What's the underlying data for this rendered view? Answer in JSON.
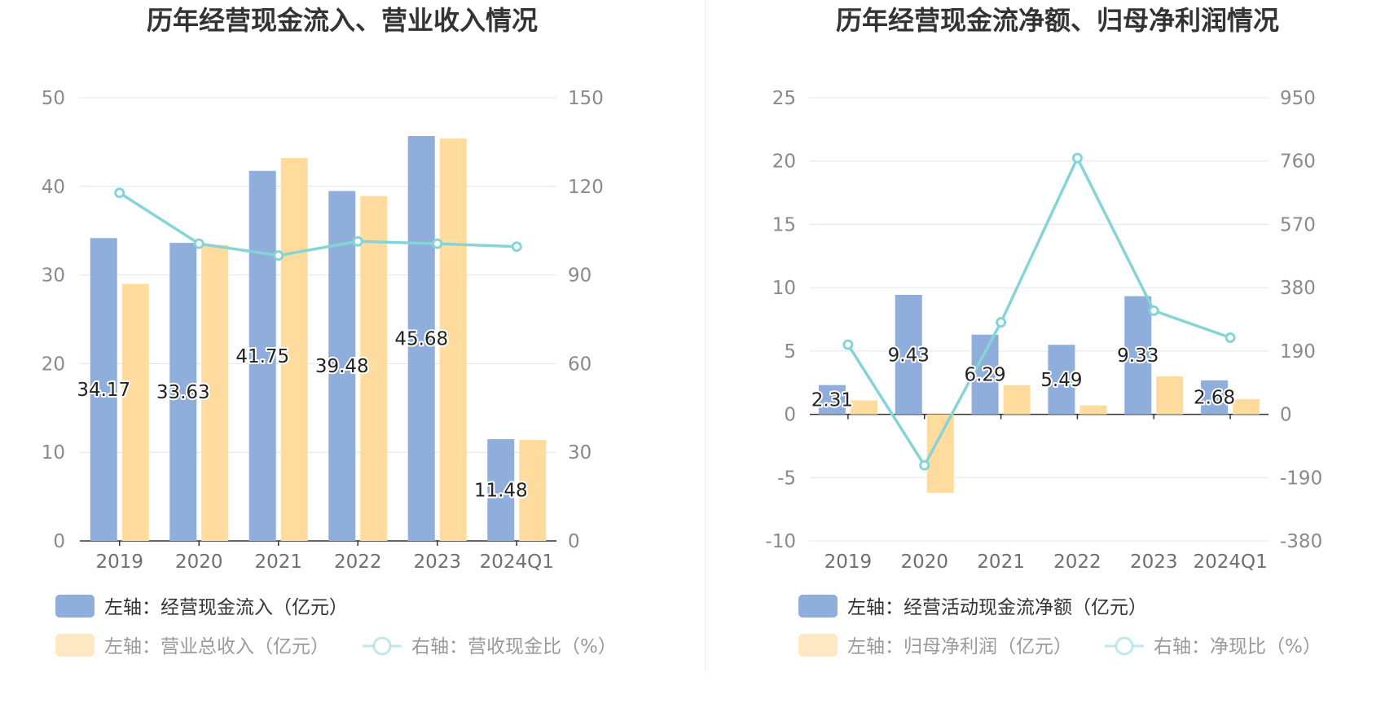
{
  "colors": {
    "bar_primary": "#8faedb",
    "bar_secondary": "#ffdb9e",
    "line": "#86d4d6",
    "grid": "#dfe4ee",
    "axis": "#333333"
  },
  "chart_data": [
    {
      "type": "bar",
      "title": "历年经营现金流入、营业收入情况",
      "categories": [
        "2019",
        "2020",
        "2021",
        "2022",
        "2023",
        "2024Q1"
      ],
      "left_axis": {
        "ylim": [
          0,
          50
        ],
        "ticks": [
          "0",
          "10",
          "20",
          "30",
          "40",
          "50"
        ]
      },
      "right_axis": {
        "ylim": [
          0,
          150
        ],
        "ticks": [
          "0",
          "30",
          "60",
          "90",
          "120",
          "150"
        ]
      },
      "series": [
        {
          "name": "左轴：经营现金流入（亿元）",
          "kind": "bar",
          "axis": "left",
          "values": [
            34.17,
            33.63,
            41.75,
            39.48,
            45.68,
            11.48
          ],
          "labels": [
            "34.17",
            "33.63",
            "41.75",
            "39.48",
            "45.68",
            "11.48"
          ]
        },
        {
          "name": "左轴：营业总收入（亿元）",
          "kind": "bar",
          "axis": "left",
          "values": [
            29.0,
            33.4,
            43.2,
            38.9,
            45.4,
            11.4
          ]
        },
        {
          "name": "右轴：营收现金比（%）",
          "kind": "line",
          "axis": "right",
          "values": [
            117.8,
            100.6,
            96.6,
            101.4,
            100.6,
            99.6
          ]
        }
      ],
      "legend": [
        "左轴：经营现金流入（亿元）",
        "左轴：营业总收入（亿元）",
        "右轴：营收现金比（%）"
      ],
      "grid": true,
      "legend_placement": "bottom"
    },
    {
      "type": "bar",
      "title": "历年经营现金流净额、归母净利润情况",
      "categories": [
        "2019",
        "2020",
        "2021",
        "2022",
        "2023",
        "2024Q1"
      ],
      "left_axis": {
        "ylim": [
          -10,
          25
        ],
        "ticks": [
          "-10",
          "-5",
          "0",
          "5",
          "10",
          "15",
          "20",
          "25"
        ]
      },
      "right_axis": {
        "ylim": [
          -380,
          950
        ],
        "ticks": [
          "-380",
          "-190",
          "0",
          "190",
          "380",
          "570",
          "760",
          "950"
        ]
      },
      "series": [
        {
          "name": "左轴：经营活动现金流净额（亿元）",
          "kind": "bar",
          "axis": "left",
          "values": [
            2.31,
            9.43,
            6.29,
            5.49,
            9.33,
            2.68
          ],
          "labels": [
            "2.31",
            "9.43",
            "6.29",
            "5.49",
            "9.33",
            "2.68"
          ]
        },
        {
          "name": "左轴：归母净利润（亿元）",
          "kind": "bar",
          "axis": "left",
          "values": [
            1.1,
            -6.2,
            2.3,
            0.7,
            3.0,
            1.2
          ]
        },
        {
          "name": "右轴：净现比（%）",
          "kind": "line",
          "axis": "right",
          "values": [
            209,
            -153,
            276,
            769,
            311,
            230
          ]
        }
      ],
      "legend": [
        "左轴：经营活动现金流净额（亿元）",
        "左轴：归母净利润（亿元）",
        "右轴：净现比（%）"
      ],
      "grid": true,
      "legend_placement": "bottom"
    }
  ]
}
